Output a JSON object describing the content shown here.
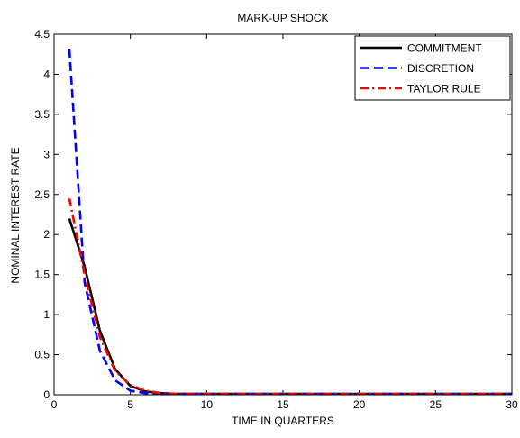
{
  "chart_data": {
    "type": "line",
    "title": "MARK-UP SHOCK",
    "xlabel": "TIME IN QUARTERS",
    "ylabel": "NOMINAL INTEREST RATE",
    "xlim": [
      0,
      30
    ],
    "ylim": [
      0,
      4.5
    ],
    "xticks": [
      0,
      5,
      10,
      15,
      20,
      25,
      30
    ],
    "yticks": [
      0,
      0.5,
      1,
      1.5,
      2,
      2.5,
      3,
      3.5,
      4,
      4.5
    ],
    "xtick_labels": [
      "0",
      "5",
      "10",
      "15",
      "20",
      "25",
      "30"
    ],
    "ytick_labels": [
      "0",
      "0.5",
      "1",
      "1.5",
      "2",
      "2.5",
      "3",
      "3.5",
      "4",
      "4.5"
    ],
    "grid": false,
    "legend_position": "top-right",
    "x": [
      1,
      2,
      3,
      4,
      5,
      6,
      7,
      8,
      9,
      10,
      11,
      12,
      13,
      14,
      15,
      16,
      17,
      18,
      19,
      20,
      21,
      22,
      23,
      24,
      25,
      26,
      27,
      28,
      29,
      30
    ],
    "series": [
      {
        "name": "COMMITMENT",
        "color": "#000000",
        "style": "solid",
        "values": [
          2.2,
          1.6,
          0.8,
          0.32,
          0.11,
          0.04,
          0.02,
          0.01,
          0.01,
          0.01,
          0.01,
          0.01,
          0.01,
          0.01,
          0.01,
          0.01,
          0.01,
          0.01,
          0.01,
          0.01,
          0.01,
          0.01,
          0.01,
          0.01,
          0.01,
          0.01,
          0.01,
          0.01,
          0.01,
          0.01
        ]
      },
      {
        "name": "DISCRETION",
        "color": "#0000ff",
        "style": "dashed",
        "values": [
          4.32,
          1.4,
          0.55,
          0.18,
          0.05,
          0.02,
          0.01,
          0.01,
          0.01,
          0.01,
          0.01,
          0.01,
          0.01,
          0.01,
          0.01,
          0.01,
          0.01,
          0.01,
          0.01,
          0.01,
          0.01,
          0.01,
          0.01,
          0.01,
          0.01,
          0.01,
          0.01,
          0.01,
          0.01,
          0.01
        ]
      },
      {
        "name": "TAYLOR RULE",
        "color": "#ff0000",
        "style": "dashdot",
        "values": [
          2.45,
          1.5,
          0.72,
          0.3,
          0.12,
          0.05,
          0.02,
          0.01,
          0.01,
          0.01,
          0.01,
          0.01,
          0.01,
          0.01,
          0.01,
          0.01,
          0.01,
          0.01,
          0.01,
          0.01,
          0.01,
          0.01,
          0.01,
          0.01,
          0.01,
          0.01,
          0.01,
          0.01,
          0.01,
          0.01
        ]
      }
    ]
  }
}
